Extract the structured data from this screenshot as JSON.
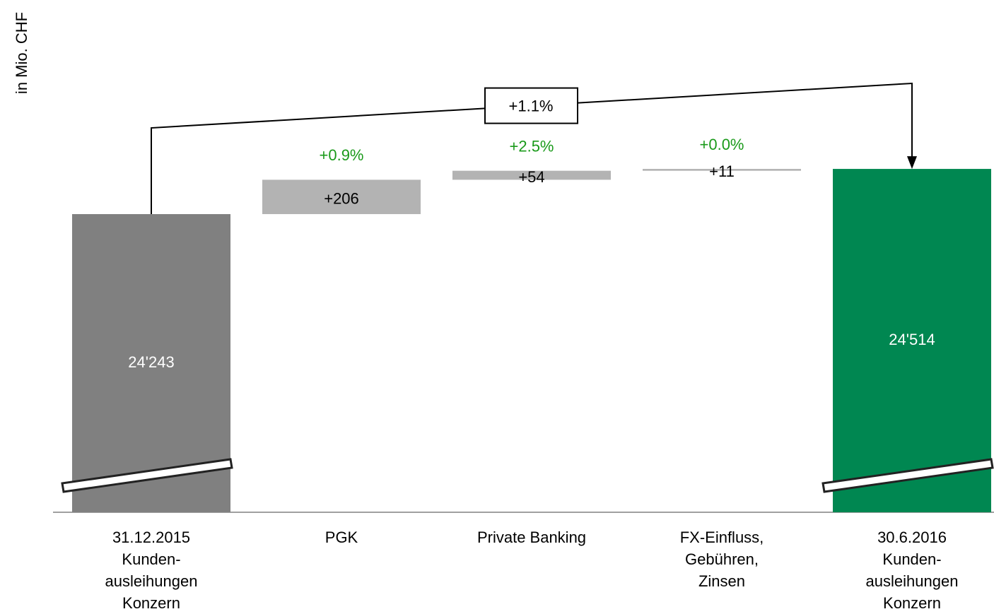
{
  "chart_data": {
    "type": "waterfall",
    "y_label": "in Mio. CHF",
    "categories": [
      "31.12.2015\nKunden-\nausleihungen\nKonzern",
      "PGK",
      "Private Banking",
      "FX-Einfluss,\nGebühren,\nZinsen",
      "30.6.2016\nKunden-\nausleihungen\nKonzern"
    ],
    "measures": [
      "absolute",
      "relative",
      "relative",
      "relative",
      "total"
    ],
    "values": [
      24243,
      206,
      54,
      11,
      24514
    ],
    "value_labels": [
      "24'243",
      "+206",
      "+54",
      "+11",
      "24'514"
    ],
    "change_labels": [
      null,
      "+0.9%",
      "+2.5%",
      "+0.0%",
      null
    ],
    "total_change_label": "+1.1%",
    "colors": [
      "#808080",
      "#b3b3b3",
      "#b3b3b3",
      "#b3b3b3",
      "#008751"
    ],
    "ylim": [
      22455,
      25527
    ],
    "axis_break": true
  }
}
